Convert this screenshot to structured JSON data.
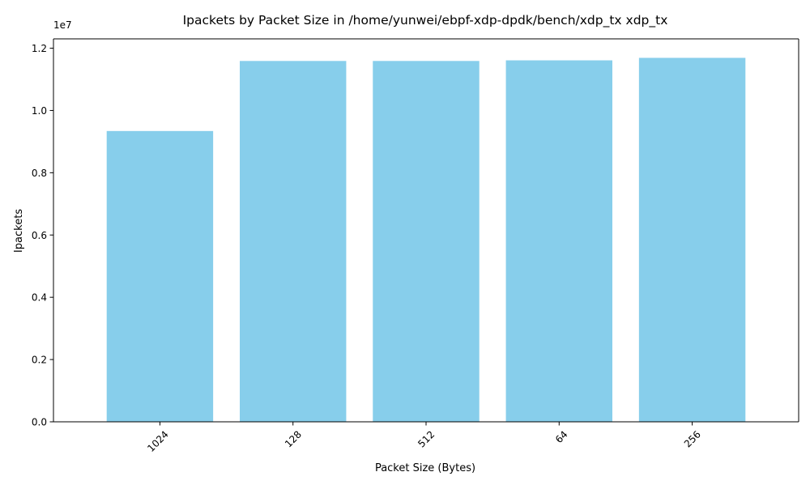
{
  "chart_data": {
    "type": "bar",
    "title": "Ipackets by Packet Size in /home/yunwei/ebpf-xdp-dpdk/bench/xdp_tx xdp_tx",
    "xlabel": "Packet Size (Bytes)",
    "ylabel": "Ipackets",
    "categories": [
      "1024",
      "128",
      "512",
      "64",
      "256"
    ],
    "values": [
      9340000,
      11590000,
      11590000,
      11610000,
      11690000
    ],
    "ylim": [
      0,
      12300000
    ],
    "yticks": [
      0,
      2000000,
      4000000,
      6000000,
      8000000,
      10000000,
      12000000
    ],
    "ytick_labels": [
      "0.0",
      "0.2",
      "0.4",
      "0.6",
      "0.8",
      "1.0",
      "1.2"
    ],
    "y_offset_label": "1e7",
    "x_tick_rotation": 45,
    "bar_color": "#87CEEB",
    "grid": false,
    "legend": "none"
  }
}
